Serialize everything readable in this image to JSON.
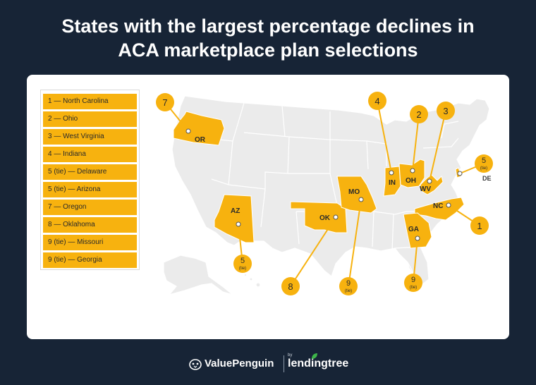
{
  "title_line1": "States with the largest percentage declines in",
  "title_line2": "ACA marketplace plan selections",
  "legend": [
    "1 — North Carolina",
    "2 — Ohio",
    "3 — West Virginia",
    "4 — Indiana",
    "5 (tie) — Delaware",
    "5 (tie) — Arizona",
    "7 — Oregon",
    "8 — Oklahoma",
    "9 (tie) — Missouri",
    "9 (tie) — Georgia"
  ],
  "markers": [
    {
      "rank": "1",
      "tie": "",
      "state": "NC"
    },
    {
      "rank": "2",
      "tie": "",
      "state": "OH"
    },
    {
      "rank": "3",
      "tie": "",
      "state": "WV"
    },
    {
      "rank": "4",
      "tie": "",
      "state": "IN"
    },
    {
      "rank": "5",
      "tie": "(tie)",
      "state": "DE"
    },
    {
      "rank": "5",
      "tie": "(tie)",
      "state": "AZ"
    },
    {
      "rank": "7",
      "tie": "",
      "state": "OR"
    },
    {
      "rank": "8",
      "tie": "",
      "state": "OK"
    },
    {
      "rank": "9",
      "tie": "(tie)",
      "state": "MO"
    },
    {
      "rank": "9",
      "tie": "(tie)",
      "state": "GA"
    }
  ],
  "brand": {
    "valuepenguin": "ValuePenguin",
    "by": "by",
    "lendingtree": "lendingtree"
  },
  "colors": {
    "background": "#172436",
    "highlight": "#f7b20f",
    "state_fill": "#ebebeb",
    "state_border": "#ffffff"
  }
}
